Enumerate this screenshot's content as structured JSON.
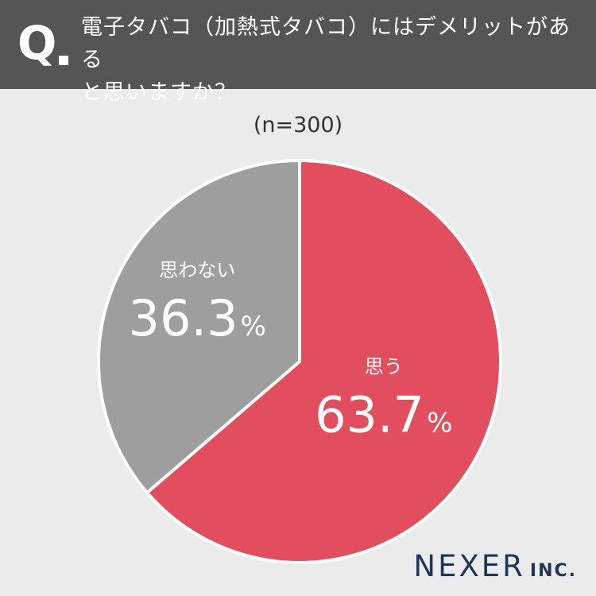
{
  "question": {
    "mark": "Q",
    "text": "電子タバコ（加熱式タバコ）にはデメリットがある\nと思いますか？"
  },
  "sample_label": "(n=300)",
  "logo": {
    "name": "NEXER",
    "suffix": "INC."
  },
  "colors": {
    "header_bg": "#555555",
    "slice_yes": "#e34e5e",
    "slice_no": "#9e9e9e",
    "background": "#ebebeb",
    "logo": "#1f3658"
  },
  "chart_data": {
    "type": "pie",
    "title": "電子タバコ（加熱式タバコ）にはデメリットがあると思いますか？",
    "n_label": "(n=300)",
    "slices": [
      {
        "label": "思う",
        "value": 63.7,
        "display": "63.7",
        "unit": "%",
        "color": "#e34e5e"
      },
      {
        "label": "思わない",
        "value": 36.3,
        "display": "36.3",
        "unit": "%",
        "color": "#9e9e9e"
      }
    ],
    "start": "12 o'clock",
    "direction": "clockwise"
  }
}
